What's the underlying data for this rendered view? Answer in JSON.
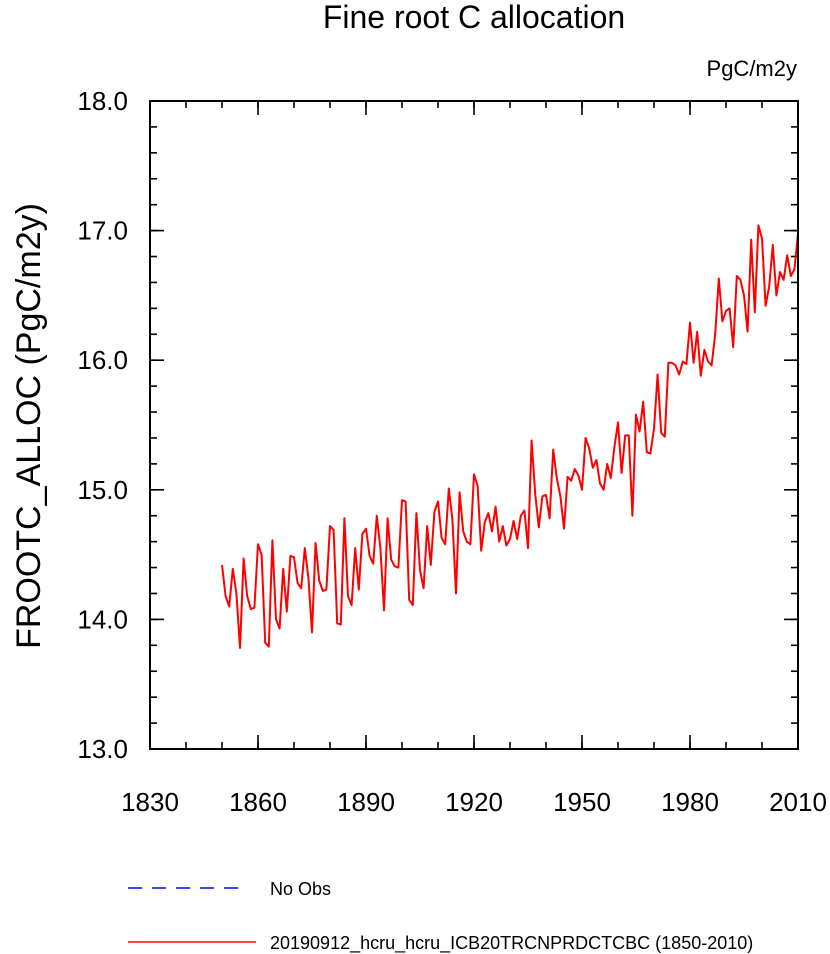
{
  "chart_data": {
    "type": "line",
    "title": "Fine root C allocation",
    "units_label": "PgC/m2y",
    "ylabel": "FROOTC_ALLOC  (PgC/m2y)",
    "xlabel": "",
    "xlim": [
      1830,
      2010
    ],
    "ylim": [
      13.0,
      18.0
    ],
    "x_ticks": [
      1830,
      1860,
      1890,
      1920,
      1950,
      1980,
      2010
    ],
    "x_tick_labels": [
      "1830",
      "1860",
      "1890",
      "1920",
      "1950",
      "1980",
      "2010"
    ],
    "x_minor_step": 10,
    "y_ticks": [
      13.0,
      14.0,
      15.0,
      16.0,
      17.0,
      18.0
    ],
    "y_tick_labels": [
      "13.0",
      "14.0",
      "15.0",
      "16.0",
      "17.0",
      "18.0"
    ],
    "y_minor_step": 0.2,
    "grid": false,
    "legend_position": "bottom-left",
    "series": [
      {
        "name": "No Obs",
        "color": "#0000ff",
        "style": "dashed",
        "x": [],
        "values": []
      },
      {
        "name": "20190912_hcru_hcru_ICB20TRCNPRDCTCBC (1850-2010)",
        "color": "#ff0000",
        "style": "solid",
        "x_start": 1850,
        "x_step": 1,
        "values": [
          14.42,
          14.18,
          14.1,
          14.39,
          14.2,
          13.78,
          14.47,
          14.18,
          14.08,
          14.09,
          14.58,
          14.5,
          13.82,
          13.79,
          14.61,
          14.0,
          13.93,
          14.39,
          14.06,
          14.49,
          14.48,
          14.28,
          14.24,
          14.55,
          14.32,
          13.9,
          14.59,
          14.3,
          14.22,
          14.23,
          14.72,
          14.69,
          13.97,
          13.96,
          14.78,
          14.18,
          14.11,
          14.55,
          14.23,
          14.66,
          14.7,
          14.49,
          14.43,
          14.8,
          14.55,
          14.07,
          14.78,
          14.46,
          14.41,
          14.4,
          14.92,
          14.91,
          14.15,
          14.11,
          14.82,
          14.38,
          14.24,
          14.72,
          14.42,
          14.83,
          14.91,
          14.63,
          14.58,
          15.01,
          14.77,
          14.2,
          14.98,
          14.68,
          14.6,
          14.58,
          15.12,
          15.03,
          14.53,
          14.75,
          14.82,
          14.68,
          14.87,
          14.6,
          14.72,
          14.57,
          14.62,
          14.76,
          14.62,
          14.8,
          14.84,
          14.55,
          15.38,
          14.97,
          14.71,
          14.95,
          14.96,
          14.78,
          15.31,
          15.09,
          14.95,
          14.7,
          15.1,
          15.07,
          15.16,
          15.11,
          15.0,
          15.4,
          15.32,
          15.17,
          15.23,
          15.05,
          15.0,
          15.2,
          15.09,
          15.33,
          15.52,
          15.13,
          15.42,
          15.42,
          14.8,
          15.58,
          15.45,
          15.68,
          15.29,
          15.28,
          15.47,
          15.89,
          15.44,
          15.41,
          15.98,
          15.98,
          15.96,
          15.89,
          15.99,
          15.97,
          16.29,
          15.98,
          16.22,
          15.88,
          16.08,
          15.99,
          15.96,
          16.2,
          16.63,
          16.3,
          16.38,
          16.4,
          16.1,
          16.65,
          16.62,
          16.5,
          16.22,
          16.93,
          16.37,
          17.04,
          16.94,
          16.42,
          16.57,
          16.89,
          16.5,
          16.68,
          16.62,
          16.81,
          16.65,
          16.7,
          16.98
        ]
      }
    ]
  }
}
